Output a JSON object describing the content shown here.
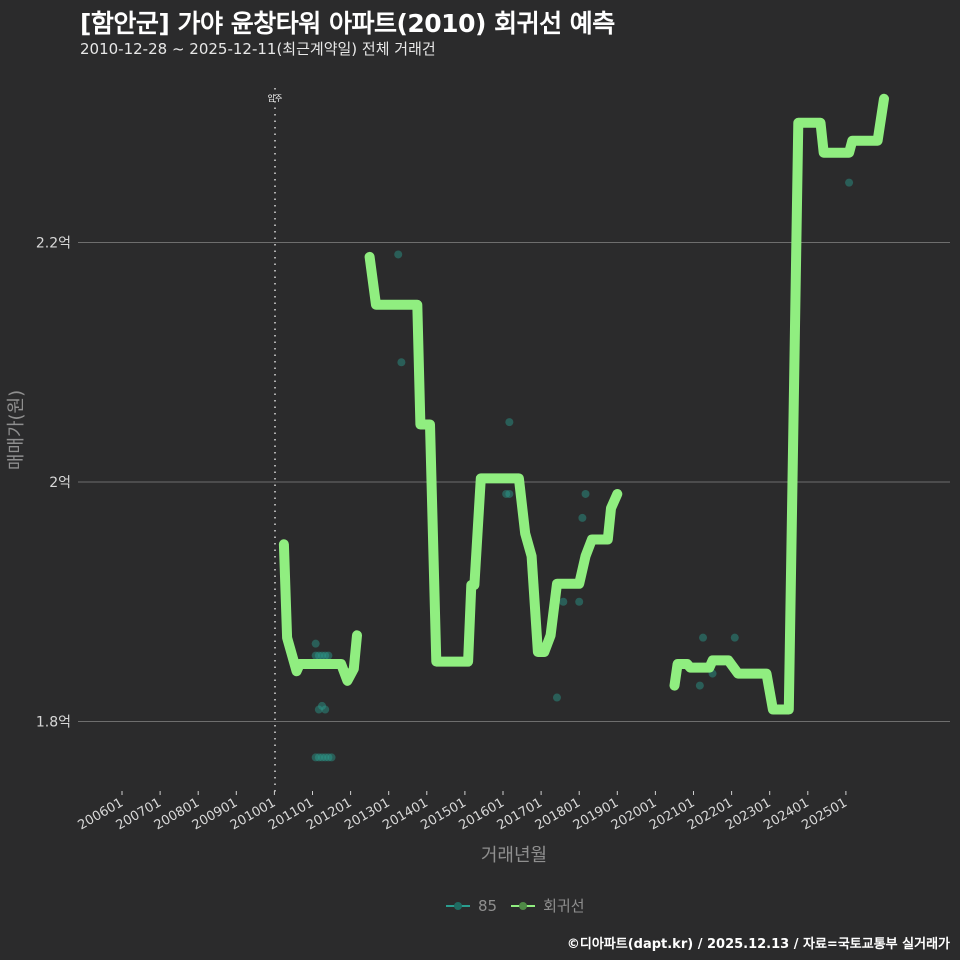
{
  "header": {
    "title": "[함안군] 가야 윤창타워 아파트(2010) 회귀선 예측",
    "subtitle": "2010-12-28 ~ 2025-12-11(최근계약일) 전체 거래건"
  },
  "legend": {
    "items": [
      {
        "label": "85",
        "color": "#2a9d8f"
      },
      {
        "label": "회귀선",
        "color": "#90ee80"
      }
    ]
  },
  "footer": {
    "text": "©디아파트(dapt.kr) / 2025.12.13 / 자료=국토교통부 실거래가"
  },
  "colors": {
    "background": "#2b2b2c",
    "gridline": "#6e6e6e",
    "regression": "#90ee80",
    "points": "#2a9d8f",
    "marker": "#cfcfcf"
  },
  "chart_data": {
    "type": "line",
    "title": "[함안군] 가야 윤창타워 아파트(2010) 회귀선 예측",
    "subtitle": "2010-12-28 ~ 2025-12-11(최근계약일) 전체 거래건",
    "xlabel": "거래년월",
    "ylabel": "매매가(원)",
    "x_ticks": [
      "200601",
      "200701",
      "200801",
      "200901",
      "201001",
      "201101",
      "201201",
      "201301",
      "201401",
      "201501",
      "201601",
      "201701",
      "201801",
      "201901",
      "202001",
      "202101",
      "202201",
      "202301",
      "202401",
      "202501"
    ],
    "y_ticks": [
      {
        "value": 180000000,
        "label": "1.8억"
      },
      {
        "value": 200000000,
        "label": "2억"
      },
      {
        "value": 220000000,
        "label": "2.2억"
      }
    ],
    "ylim": [
      175000000,
      238000000
    ],
    "xlim": [
      "2005-03",
      "2026-06"
    ],
    "grid": {
      "horizontal": true,
      "vertical": false
    },
    "legend_position": "bottom",
    "annotations": [
      {
        "type": "vline",
        "x": "2010-01",
        "label": "입주",
        "style": "dotted"
      }
    ],
    "series": [
      {
        "name": "85",
        "kind": "scatter",
        "points": [
          {
            "x": "2011-01",
            "y": 186500000
          },
          {
            "x": "2011-01",
            "y": 185500000
          },
          {
            "x": "2011-02",
            "y": 185500000
          },
          {
            "x": "2011-03",
            "y": 185500000
          },
          {
            "x": "2011-04",
            "y": 185500000
          },
          {
            "x": "2011-05",
            "y": 185500000
          },
          {
            "x": "2011-02",
            "y": 181000000
          },
          {
            "x": "2011-03",
            "y": 181300000
          },
          {
            "x": "2011-04",
            "y": 181000000
          },
          {
            "x": "2011-01",
            "y": 177000000
          },
          {
            "x": "2011-02",
            "y": 177000000
          },
          {
            "x": "2011-03",
            "y": 177000000
          },
          {
            "x": "2011-04",
            "y": 177000000
          },
          {
            "x": "2011-05",
            "y": 177000000
          },
          {
            "x": "2011-06",
            "y": 177000000
          },
          {
            "x": "2013-03",
            "y": 219000000
          },
          {
            "x": "2013-04",
            "y": 210000000
          },
          {
            "x": "2016-01",
            "y": 199000000
          },
          {
            "x": "2016-02",
            "y": 199000000
          },
          {
            "x": "2016-02",
            "y": 205000000
          },
          {
            "x": "2017-05",
            "y": 182000000
          },
          {
            "x": "2017-07",
            "y": 190000000
          },
          {
            "x": "2017-12",
            "y": 190000000
          },
          {
            "x": "2018-01",
            "y": 197000000
          },
          {
            "x": "2018-02",
            "y": 199000000
          },
          {
            "x": "2021-02",
            "y": 183000000
          },
          {
            "x": "2021-03",
            "y": 187000000
          },
          {
            "x": "2021-06",
            "y": 184000000
          },
          {
            "x": "2022-01",
            "y": 187000000
          },
          {
            "x": "2024-03",
            "y": 230000000
          },
          {
            "x": "2025-01",
            "y": 225000000
          }
        ]
      },
      {
        "name": "회귀선",
        "kind": "line",
        "segments": [
          [
            {
              "x": "2010-03",
              "y": 194800000
            },
            {
              "x": "2010-04",
              "y": 187000000
            },
            {
              "x": "2010-07",
              "y": 184200000
            },
            {
              "x": "2010-08",
              "y": 184800000
            },
            {
              "x": "2011-09",
              "y": 184800000
            },
            {
              "x": "2011-11",
              "y": 183400000
            },
            {
              "x": "2012-01",
              "y": 184400000
            },
            {
              "x": "2012-02",
              "y": 187200000
            }
          ],
          [
            {
              "x": "2012-06",
              "y": 218800000
            },
            {
              "x": "2012-08",
              "y": 214800000
            },
            {
              "x": "2013-09",
              "y": 214800000
            },
            {
              "x": "2013-10",
              "y": 204800000
            },
            {
              "x": "2014-01",
              "y": 204800000
            },
            {
              "x": "2014-03",
              "y": 185000000
            },
            {
              "x": "2015-01",
              "y": 185000000
            },
            {
              "x": "2015-02",
              "y": 191400000
            },
            {
              "x": "2015-03",
              "y": 191400000
            },
            {
              "x": "2015-05",
              "y": 200300000
            },
            {
              "x": "2016-05",
              "y": 200300000
            },
            {
              "x": "2016-07",
              "y": 195700000
            },
            {
              "x": "2016-09",
              "y": 193800000
            },
            {
              "x": "2016-11",
              "y": 185800000
            },
            {
              "x": "2017-01",
              "y": 185800000
            },
            {
              "x": "2017-03",
              "y": 187200000
            },
            {
              "x": "2017-05",
              "y": 191500000
            },
            {
              "x": "2017-12",
              "y": 191500000
            },
            {
              "x": "2018-02",
              "y": 193800000
            },
            {
              "x": "2018-04",
              "y": 195200000
            },
            {
              "x": "2018-09",
              "y": 195200000
            },
            {
              "x": "2018-10",
              "y": 197800000
            },
            {
              "x": "2019-00",
              "y": 199000000
            }
          ],
          [
            {
              "x": "2020-06",
              "y": 183000000
            },
            {
              "x": "2020-07",
              "y": 184800000
            },
            {
              "x": "2020-10",
              "y": 184800000
            },
            {
              "x": "2020-11",
              "y": 184500000
            },
            {
              "x": "2021-05",
              "y": 184500000
            },
            {
              "x": "2021-06",
              "y": 185100000
            },
            {
              "x": "2021-11",
              "y": 185100000
            },
            {
              "x": "2022-02",
              "y": 184000000
            },
            {
              "x": "2022-11",
              "y": 184000000
            },
            {
              "x": "2023-01",
              "y": 181000000
            },
            {
              "x": "2023-06",
              "y": 181000000
            },
            {
              "x": "2023-09",
              "y": 230000000
            },
            {
              "x": "2024-04",
              "y": 230000000
            },
            {
              "x": "2024-05",
              "y": 227500000
            },
            {
              "x": "2025-01",
              "y": 227500000
            },
            {
              "x": "2025-02",
              "y": 228500000
            },
            {
              "x": "2025-10",
              "y": 228500000
            },
            {
              "x": "2025-12",
              "y": 232000000
            }
          ]
        ]
      }
    ]
  }
}
